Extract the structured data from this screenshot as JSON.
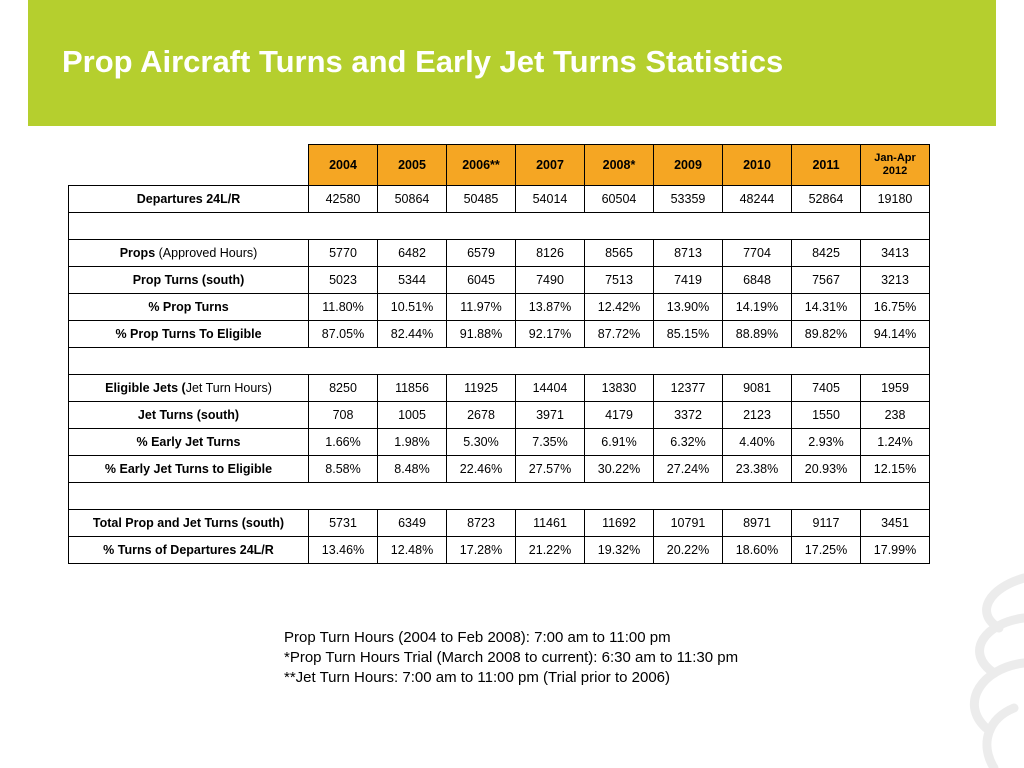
{
  "title": "Prop Aircraft Turns and Early Jet Turns Statistics",
  "colors": {
    "title_bar": "#b5cf2e",
    "header_fill": "#f5a623"
  },
  "table": {
    "headers": [
      "2004",
      "2005",
      "2006**",
      "2007",
      "2008*",
      "2009",
      "2010",
      "2011"
    ],
    "last_header_line1": "Jan-Apr",
    "last_header_line2": "2012",
    "rows": {
      "departures": {
        "label": "Departures 24L/R",
        "values": [
          "42580",
          "50864",
          "50485",
          "54014",
          "60504",
          "53359",
          "48244",
          "52864",
          "19180"
        ]
      },
      "props": {
        "label_bold": "Props",
        "label_normal": " (Approved Hours)",
        "values": [
          "5770",
          "6482",
          "6579",
          "8126",
          "8565",
          "8713",
          "7704",
          "8425",
          "3413"
        ]
      },
      "prop_turns": {
        "label": "Prop Turns (south)",
        "values": [
          "5023",
          "5344",
          "6045",
          "7490",
          "7513",
          "7419",
          "6848",
          "7567",
          "3213"
        ]
      },
      "pct_prop_turns": {
        "label": "% Prop Turns",
        "values": [
          "11.80%",
          "10.51%",
          "11.97%",
          "13.87%",
          "12.42%",
          "13.90%",
          "14.19%",
          "14.31%",
          "16.75%"
        ]
      },
      "pct_prop_turns_eligible": {
        "label": "% Prop Turns To Eligible",
        "values": [
          "87.05%",
          "82.44%",
          "91.88%",
          "92.17%",
          "87.72%",
          "85.15%",
          "88.89%",
          "89.82%",
          "94.14%"
        ]
      },
      "eligible_jets": {
        "label_bold": "Eligible Jets (",
        "label_normal": "Jet Turn Hours)",
        "values": [
          "8250",
          "11856",
          "11925",
          "14404",
          "13830",
          "12377",
          "9081",
          "7405",
          "1959"
        ]
      },
      "jet_turns": {
        "label": "Jet Turns (south)",
        "values": [
          "708",
          "1005",
          "2678",
          "3971",
          "4179",
          "3372",
          "2123",
          "1550",
          "238"
        ]
      },
      "pct_early_jet": {
        "label": "% Early Jet Turns",
        "values": [
          "1.66%",
          "1.98%",
          "5.30%",
          "7.35%",
          "6.91%",
          "6.32%",
          "4.40%",
          "2.93%",
          "1.24%"
        ]
      },
      "pct_early_jet_eligible": {
        "label": "% Early Jet Turns to Eligible",
        "values": [
          "8.58%",
          "8.48%",
          "22.46%",
          "27.57%",
          "30.22%",
          "27.24%",
          "23.38%",
          "20.93%",
          "12.15%"
        ]
      },
      "total_turns": {
        "label": "Total Prop and Jet Turns (south)",
        "values": [
          "5731",
          "6349",
          "8723",
          "11461",
          "11692",
          "10791",
          "8971",
          "9117",
          "3451"
        ]
      },
      "pct_turns_departures": {
        "label": "% Turns of Departures 24L/R",
        "values": [
          "13.46%",
          "12.48%",
          "17.28%",
          "21.22%",
          "19.32%",
          "20.22%",
          "18.60%",
          "17.25%",
          "17.99%"
        ]
      }
    }
  },
  "notes": [
    "Prop Turn Hours (2004 to Feb 2008): 7:00 am to 11:00 pm",
    "*Prop Turn Hours Trial (March 2008 to current): 6:30 am to 11:30 pm",
    "**Jet Turn Hours: 7:00 am to 11:00 pm (Trial prior to 2006)"
  ]
}
